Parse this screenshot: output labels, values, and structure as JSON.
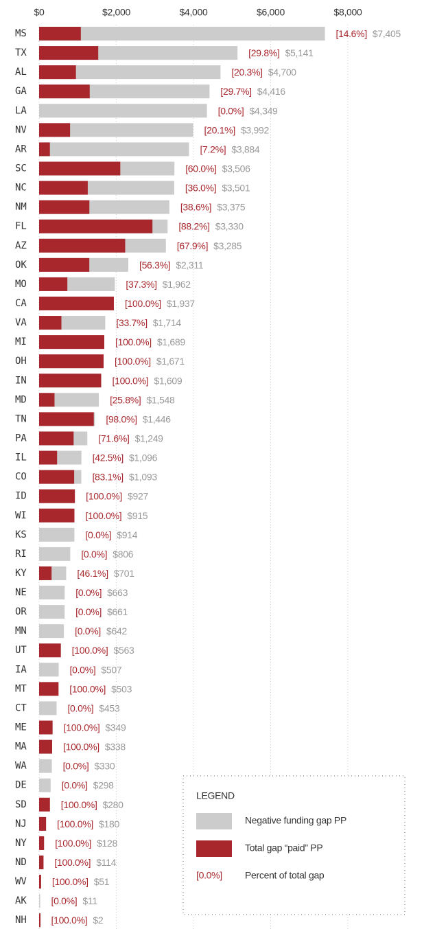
{
  "chart_data": {
    "type": "bar",
    "orientation": "horizontal",
    "categories": [
      "MS",
      "TX",
      "AL",
      "GA",
      "LA",
      "NV",
      "AR",
      "SC",
      "NC",
      "NM",
      "FL",
      "AZ",
      "OK",
      "MO",
      "CA",
      "VA",
      "MI",
      "OH",
      "IN",
      "MD",
      "TN",
      "PA",
      "IL",
      "CO",
      "ID",
      "WI",
      "KS",
      "RI",
      "KY",
      "NE",
      "OR",
      "MN",
      "UT",
      "IA",
      "MT",
      "CT",
      "ME",
      "MA",
      "WA",
      "DE",
      "SD",
      "NJ",
      "NY",
      "ND",
      "WV",
      "AK",
      "NH"
    ],
    "values": [
      7405,
      5141,
      4700,
      4416,
      4349,
      3992,
      3884,
      3506,
      3501,
      3375,
      3330,
      3285,
      2311,
      1962,
      1937,
      1714,
      1689,
      1671,
      1609,
      1548,
      1446,
      1249,
      1096,
      1093,
      927,
      915,
      914,
      806,
      701,
      663,
      661,
      642,
      563,
      507,
      503,
      453,
      349,
      338,
      330,
      298,
      280,
      180,
      128,
      114,
      51,
      11,
      2
    ],
    "value_labels": [
      "$7,405",
      "$5,141",
      "$4,700",
      "$4,416",
      "$4,349",
      "$3,992",
      "$3,884",
      "$3,506",
      "$3,501",
      "$3,375",
      "$3,330",
      "$3,285",
      "$2,311",
      "$1,962",
      "$1,937",
      "$1,714",
      "$1,689",
      "$1,671",
      "$1,609",
      "$1,548",
      "$1,446",
      "$1,249",
      "$1,096",
      "$1,093",
      "$927",
      "$915",
      "$914",
      "$806",
      "$701",
      "$663",
      "$661",
      "$642",
      "$563",
      "$507",
      "$503",
      "$453",
      "$349",
      "$338",
      "$330",
      "$298",
      "$280",
      "$180",
      "$128",
      "$114",
      "$51",
      "$11",
      "$2"
    ],
    "percents": [
      14.6,
      29.8,
      20.3,
      29.7,
      0,
      20.1,
      7.2,
      60,
      36,
      38.6,
      88.2,
      67.9,
      56.3,
      37.3,
      100,
      33.7,
      100,
      100,
      100,
      25.8,
      98,
      71.6,
      42.5,
      83.1,
      100,
      100,
      0,
      0,
      46.1,
      0,
      0,
      0,
      100,
      0,
      100,
      0,
      100,
      100,
      0,
      0,
      100,
      100,
      100,
      100,
      100,
      0,
      100
    ],
    "percent_labels": [
      "[14.6%]",
      "[29.8%]",
      "[20.3%]",
      "[29.7%]",
      "[0.0%]",
      "[20.1%]",
      "[7.2%]",
      "[60.0%]",
      "[36.0%]",
      "[38.6%]",
      "[88.2%]",
      "[67.9%]",
      "[56.3%]",
      "[37.3%]",
      "[100.0%]",
      "[33.7%]",
      "[100.0%]",
      "[100.0%]",
      "[100.0%]",
      "[25.8%]",
      "[98.0%]",
      "[71.6%]",
      "[42.5%]",
      "[83.1%]",
      "[100.0%]",
      "[100.0%]",
      "[0.0%]",
      "[0.0%]",
      "[46.1%]",
      "[0.0%]",
      "[0.0%]",
      "[0.0%]",
      "[100.0%]",
      "[0.0%]",
      "[100.0%]",
      "[0.0%]",
      "[100.0%]",
      "[100.0%]",
      "[0.0%]",
      "[0.0%]",
      "[100.0%]",
      "[100.0%]",
      "[100.0%]",
      "[100.0%]",
      "[100.0%]",
      "[0.0%]",
      "[100.0%]"
    ],
    "total_color": "#cccccc",
    "paid_color": "#a8272d",
    "value_label_color": "#999999",
    "xlim": [
      0,
      8000
    ],
    "xticks": [
      {
        "value": 0,
        "label": "$0"
      },
      {
        "value": 2000,
        "label": "$2,000"
      },
      {
        "value": 4000,
        "label": "$4,000"
      },
      {
        "value": 6000,
        "label": "$6,000"
      },
      {
        "value": 8000,
        "label": "$8,000"
      }
    ],
    "grid": true,
    "legend": {
      "position": "lower right",
      "title": "LEGEND",
      "entries": [
        "Negative funding gap PP",
        "Total gap “paid” PP",
        "Percent of total gap"
      ],
      "sample_label": "[0.0%]"
    }
  }
}
